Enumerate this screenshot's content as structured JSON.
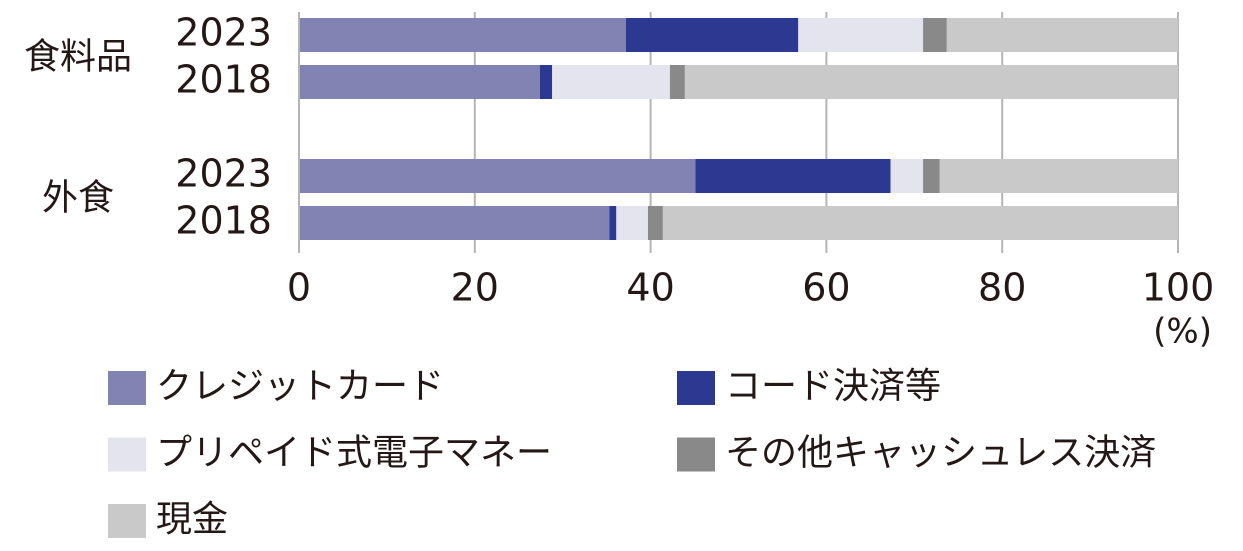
{
  "chart_data": {
    "type": "stacked-barh",
    "groups": [
      "食料品",
      "外食"
    ],
    "categories": [
      "2023",
      "2018",
      "2023",
      "2018"
    ],
    "series": [
      {
        "name": "クレジットカード",
        "color": "#8184b2",
        "values": [
          37.2,
          27.4,
          45.1,
          35.3
        ]
      },
      {
        "name": "コード決済等",
        "color": "#2b3990",
        "values": [
          19.6,
          1.4,
          22.2,
          0.8
        ]
      },
      {
        "name": "プリペイド式電子マネー",
        "color": "#e3e4ee",
        "values": [
          14.2,
          13.4,
          3.7,
          3.6
        ]
      },
      {
        "name": "その他キャッシュレス決済",
        "color": "#898989",
        "values": [
          2.7,
          1.7,
          1.9,
          1.7
        ]
      },
      {
        "name": "現金",
        "color": "#c9c9c9",
        "values": [
          26.3,
          56.1,
          27.1,
          58.6
        ]
      }
    ],
    "xlim": [
      0,
      100
    ],
    "xticks": [
      0,
      20,
      40,
      60,
      80,
      100
    ],
    "xlabel": "(%)",
    "grid": true
  }
}
